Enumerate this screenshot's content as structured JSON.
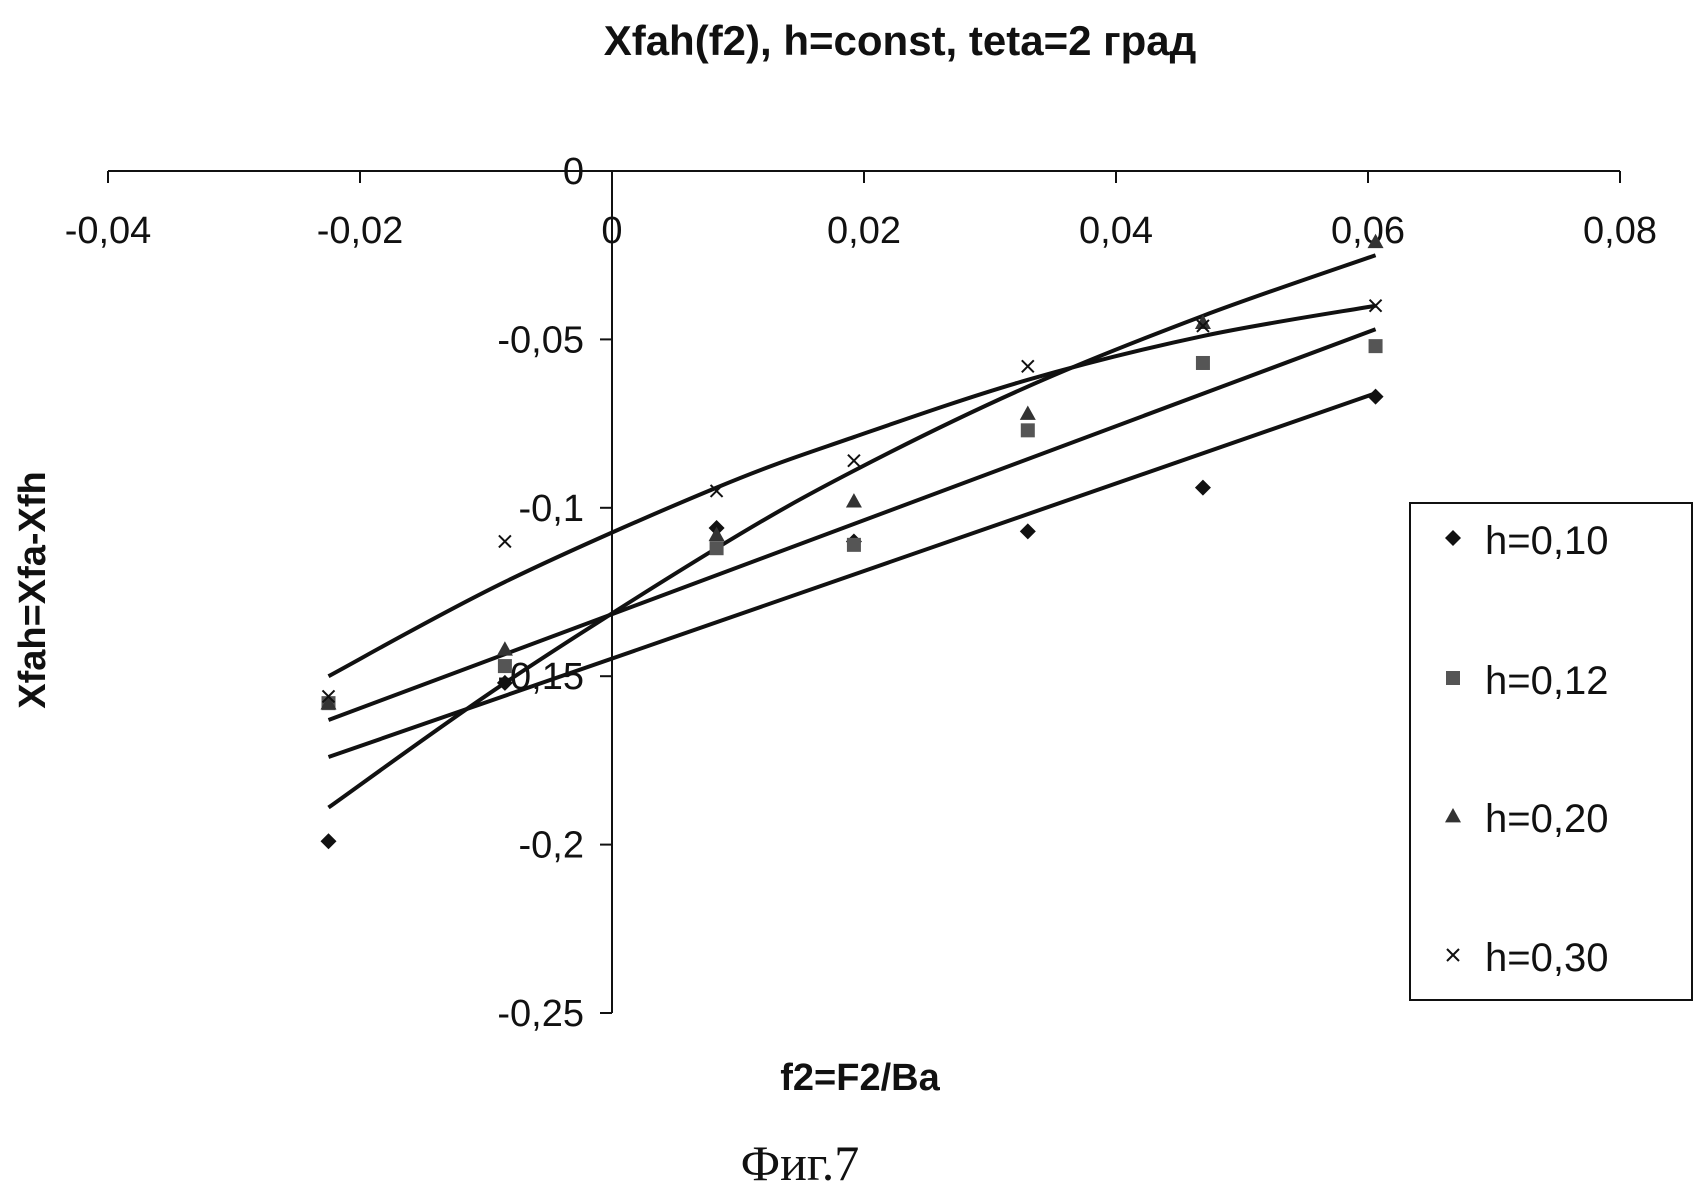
{
  "chart_data": {
    "type": "scatter",
    "title": "Xfah(f2), h=const, teta=2 град",
    "xlabel": "f2=F2/Ba",
    "ylabel": "Xfah=Xfa-Xfh",
    "caption": "Фиг.7",
    "x_ticks": [
      "-0,04",
      "-0,02",
      "0",
      "0,02",
      "0,04",
      "0,06",
      "0,08"
    ],
    "y_ticks": [
      "0",
      "-0,05",
      "-0,1",
      "-0,15",
      "-0,2",
      "-0,25"
    ],
    "xlim": [
      -0.04,
      0.08
    ],
    "ylim": [
      -0.25,
      0
    ],
    "grid": false,
    "legend_position": "right",
    "x_axis_position": "top",
    "series": [
      {
        "name": "h=0,10",
        "marker": "diamond",
        "points": [
          [
            -0.0225,
            -0.199
          ],
          [
            -0.0085,
            -0.152
          ],
          [
            0.0083,
            -0.106
          ],
          [
            0.0192,
            -0.11
          ],
          [
            0.033,
            -0.107
          ],
          [
            0.0469,
            -0.094
          ],
          [
            0.0606,
            -0.067
          ]
        ],
        "trend": [
          [
            -0.0225,
            -0.174
          ],
          [
            0.0606,
            -0.066
          ]
        ]
      },
      {
        "name": "h=0,12",
        "marker": "square",
        "points": [
          [
            -0.0225,
            -0.158
          ],
          [
            -0.0085,
            -0.147
          ],
          [
            0.0083,
            -0.112
          ],
          [
            0.0192,
            -0.111
          ],
          [
            0.033,
            -0.077
          ],
          [
            0.0469,
            -0.057
          ],
          [
            0.0606,
            -0.052
          ]
        ],
        "trend": [
          [
            -0.0225,
            -0.163
          ],
          [
            0.0606,
            -0.047
          ]
        ]
      },
      {
        "name": "h=0,20",
        "marker": "triangle",
        "points": [
          [
            -0.0225,
            -0.158
          ],
          [
            -0.0085,
            -0.142
          ],
          [
            0.0083,
            -0.108
          ],
          [
            0.0192,
            -0.098
          ],
          [
            0.033,
            -0.072
          ],
          [
            0.0469,
            -0.045
          ],
          [
            0.0606,
            -0.021
          ]
        ],
        "trend": [
          [
            -0.0225,
            -0.189
          ],
          [
            -0.0085,
            -0.152
          ],
          [
            0.0083,
            -0.112
          ],
          [
            0.0192,
            -0.089
          ],
          [
            0.033,
            -0.064
          ],
          [
            0.0469,
            -0.043
          ],
          [
            0.0606,
            -0.025
          ]
        ]
      },
      {
        "name": "h=0,30",
        "marker": "x",
        "points": [
          [
            -0.0225,
            -0.156
          ],
          [
            -0.0085,
            -0.11
          ],
          [
            0.0083,
            -0.095
          ],
          [
            0.0192,
            -0.086
          ],
          [
            0.033,
            -0.058
          ],
          [
            0.0469,
            -0.046
          ],
          [
            0.0606,
            -0.04
          ]
        ],
        "trend": [
          [
            -0.0225,
            -0.15
          ],
          [
            -0.0085,
            -0.122
          ],
          [
            0.0083,
            -0.094
          ],
          [
            0.0192,
            -0.079
          ],
          [
            0.033,
            -0.062
          ],
          [
            0.0469,
            -0.049
          ],
          [
            0.0606,
            -0.04
          ]
        ]
      }
    ]
  }
}
